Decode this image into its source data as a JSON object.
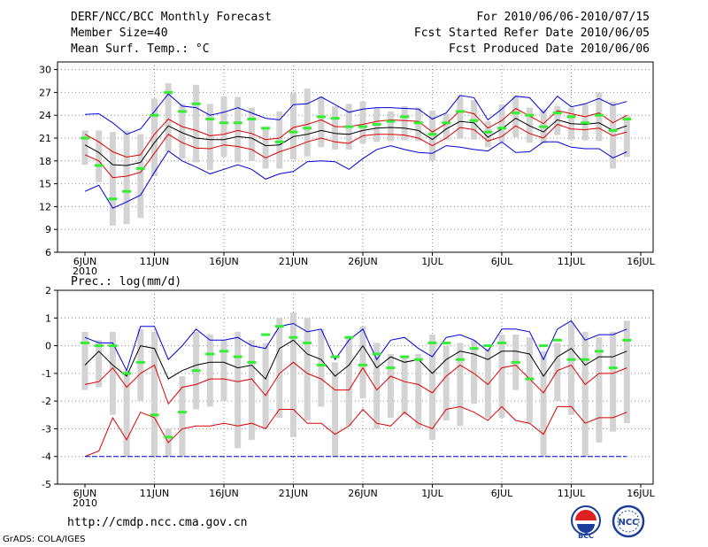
{
  "header": {
    "title": "DERF/NCC/BCC Monthly Forecast",
    "member_size": "Member Size=40",
    "variable": "Mean Surf. Temp.: °C",
    "period": "For 2010/06/06-2010/07/15",
    "fcst_started": "Fcst Started Refer Date 2010/06/05",
    "fcst_produced": "Fcst Produced Date 2010/06/06"
  },
  "footer": {
    "url": "http://cmdp.ncc.cma.gov.cn",
    "grads": "GrADS: COLA/IGES",
    "logo_left": "BCC",
    "logo_right": "NCC"
  },
  "colors": {
    "grid": "#888888",
    "envelope": "#0000dd",
    "spread": "#dd0000",
    "mean": "#000000",
    "box": "#d3d3d3",
    "member": "#33ee33"
  },
  "chart_data": [
    {
      "type": "line",
      "title": "Mean Surf. Temp.: °C",
      "ylim": [
        6,
        31
      ],
      "yticks": [
        6,
        9,
        12,
        15,
        18,
        21,
        24,
        27,
        30
      ],
      "xticks": [
        {
          "day": 1,
          "label": "6JUN"
        },
        {
          "day": 6,
          "label": "11JUN"
        },
        {
          "day": 11,
          "label": "16JUN"
        },
        {
          "day": 16,
          "label": "21JUN"
        },
        {
          "day": 21,
          "label": "26JUN"
        },
        {
          "day": 26,
          "label": "1JUL"
        },
        {
          "day": 31,
          "label": "6JUL"
        },
        {
          "day": 36,
          "label": "11JUL"
        },
        {
          "day": 41,
          "label": "16JUL"
        }
      ],
      "year_label": "2010",
      "days": [
        1,
        2,
        3,
        4,
        5,
        6,
        7,
        8,
        9,
        10,
        11,
        12,
        13,
        14,
        15,
        16,
        17,
        18,
        19,
        20,
        21,
        22,
        23,
        24,
        25,
        26,
        27,
        28,
        29,
        30,
        31,
        32,
        33,
        34,
        35,
        36,
        37,
        38,
        39,
        40
      ],
      "series": [
        {
          "name": "max",
          "values": [
            24.1,
            24.2,
            23.0,
            21.5,
            22.2,
            24.5,
            26.8,
            25.2,
            25.0,
            24.0,
            24.4,
            25.0,
            24.3,
            23.6,
            23.4,
            25.4,
            25.5,
            26.4,
            25.4,
            24.4,
            24.8,
            25.0,
            25.0,
            24.9,
            24.8,
            23.5,
            24.3,
            26.6,
            26.3,
            23.4,
            24.8,
            26.5,
            26.3,
            24.3,
            26.5,
            25.1,
            25.5,
            26.2,
            25.3,
            25.8
          ]
        },
        {
          "name": "upper",
          "values": [
            21.5,
            20.5,
            19.2,
            18.5,
            18.8,
            21.5,
            23.5,
            22.5,
            22.0,
            21.3,
            21.5,
            22.0,
            21.6,
            20.8,
            21.0,
            22.4,
            22.8,
            23.4,
            22.5,
            22.5,
            22.8,
            23.2,
            23.4,
            23.3,
            23.2,
            21.8,
            22.9,
            24.6,
            24.2,
            22.3,
            23.3,
            24.9,
            23.9,
            22.9,
            24.6,
            24.2,
            23.8,
            24.3,
            23.0,
            24.0
          ]
        },
        {
          "name": "mean",
          "values": [
            20.1,
            19.1,
            17.5,
            17.4,
            17.8,
            20.4,
            22.6,
            21.7,
            21.0,
            20.8,
            20.8,
            21.2,
            21.0,
            20.0,
            20.1,
            21.2,
            21.5,
            22.0,
            21.6,
            21.5,
            22.0,
            22.3,
            22.4,
            22.3,
            22.0,
            20.8,
            22.2,
            23.2,
            23.0,
            21.1,
            22.2,
            23.6,
            22.6,
            21.8,
            23.4,
            22.9,
            22.8,
            23.0,
            22.0,
            22.6
          ]
        },
        {
          "name": "lower",
          "values": [
            18.8,
            18.0,
            15.8,
            16.0,
            16.5,
            19.0,
            21.5,
            20.4,
            19.7,
            19.6,
            20.1,
            19.9,
            19.5,
            18.4,
            19.2,
            19.8,
            20.5,
            21.0,
            20.5,
            20.3,
            21.3,
            21.5,
            21.5,
            21.4,
            21.0,
            20.0,
            21.0,
            22.4,
            22.1,
            20.6,
            21.2,
            22.6,
            21.6,
            21.0,
            22.8,
            22.2,
            22.1,
            22.3,
            21.3,
            21.8
          ]
        },
        {
          "name": "min",
          "values": [
            14.0,
            14.8,
            11.8,
            12.6,
            13.5,
            16.5,
            19.3,
            18.0,
            17.2,
            16.3,
            16.9,
            17.5,
            16.9,
            15.6,
            16.3,
            16.6,
            17.9,
            18.0,
            17.9,
            16.9,
            18.3,
            19.5,
            20.0,
            19.5,
            19.1,
            19.0,
            20.0,
            19.8,
            19.5,
            19.3,
            20.5,
            19.1,
            19.2,
            20.5,
            20.5,
            19.8,
            19.6,
            19.6,
            18.4,
            19.2
          ]
        }
      ],
      "boxes_low": [
        17.5,
        15.2,
        9.5,
        9.7,
        10.5,
        16.0,
        19.2,
        18.3,
        17.8,
        16.8,
        18.5,
        17.8,
        18.0,
        17.0,
        17.0,
        18.2,
        18.6,
        19.8,
        19.5,
        19.5,
        20.3,
        20.5,
        20.6,
        20.7,
        20.6,
        18.0,
        20.8,
        20.9,
        20.8,
        19.8,
        20.5,
        21.1,
        20.4,
        20.3,
        21.4,
        20.8,
        20.7,
        20.6,
        17.0,
        18.5
      ],
      "boxes_high": [
        22.0,
        22.0,
        21.8,
        22.0,
        21.5,
        26.2,
        28.2,
        25.5,
        28.0,
        25.5,
        26.5,
        26.4,
        25.0,
        22.2,
        24.5,
        27.0,
        27.5,
        26.5,
        25.2,
        25.5,
        25.8,
        25.0,
        24.5,
        25.2,
        25.0,
        24.6,
        24.2,
        26.6,
        26.0,
        23.2,
        25.4,
        26.5,
        25.0,
        24.8,
        25.2,
        25.0,
        25.5,
        27.0,
        25.8,
        24.0
      ],
      "members": [
        21.0,
        17.4,
        13.0,
        14.0,
        17.0,
        24.0,
        27.0,
        24.5,
        25.5,
        23.5,
        23.0,
        23.0,
        23.5,
        22.3,
        20.5,
        21.8,
        22.3,
        23.8,
        23.6,
        22.5,
        22.5,
        22.8,
        23.2,
        23.8,
        23.0,
        21.5,
        23.0,
        24.5,
        23.3,
        21.8,
        22.3,
        24.3,
        24.0,
        22.5,
        24.3,
        23.8,
        23.0,
        24.0,
        22.0,
        23.5
      ]
    },
    {
      "type": "line",
      "title": "Prec.: log(mm/d)",
      "ylim": [
        -5,
        2
      ],
      "yticks": [
        -5,
        -4,
        -3,
        -2,
        -1,
        0,
        1,
        2
      ],
      "xticks": [
        {
          "day": 1,
          "label": "6JUN"
        },
        {
          "day": 6,
          "label": "11JUN"
        },
        {
          "day": 11,
          "label": "16JUN"
        },
        {
          "day": 16,
          "label": "21JUN"
        },
        {
          "day": 21,
          "label": "26JUN"
        },
        {
          "day": 26,
          "label": "1JUL"
        },
        {
          "day": 31,
          "label": "6JUL"
        },
        {
          "day": 36,
          "label": "11JUL"
        },
        {
          "day": 41,
          "label": "16JUL"
        }
      ],
      "year_label": "2010",
      "days": [
        1,
        2,
        3,
        4,
        5,
        6,
        7,
        8,
        9,
        10,
        11,
        12,
        13,
        14,
        15,
        16,
        17,
        18,
        19,
        20,
        21,
        22,
        23,
        24,
        25,
        26,
        27,
        28,
        29,
        30,
        31,
        32,
        33,
        34,
        35,
        36,
        37,
        38,
        39,
        40
      ],
      "series": [
        {
          "name": "max",
          "values": [
            0.3,
            0.1,
            0.1,
            -0.9,
            0.7,
            0.7,
            -0.5,
            0.0,
            0.6,
            0.2,
            0.2,
            0.3,
            0.0,
            -0.1,
            0.7,
            0.8,
            0.5,
            0.6,
            -0.5,
            0.2,
            0.6,
            -0.5,
            0.2,
            0.3,
            -0.1,
            -0.4,
            0.3,
            0.4,
            0.2,
            -0.2,
            0.6,
            0.6,
            0.5,
            -0.5,
            0.6,
            0.9,
            0.2,
            0.4,
            0.4,
            0.6
          ]
        },
        {
          "name": "mean",
          "values": [
            -0.7,
            -0.2,
            -0.7,
            -1.1,
            0.0,
            -0.1,
            -1.2,
            -0.9,
            -0.7,
            -0.6,
            -0.6,
            -0.8,
            -0.7,
            -1.2,
            -0.1,
            0.2,
            -0.3,
            -0.5,
            -1.1,
            -0.7,
            0.0,
            -0.8,
            -0.4,
            -0.6,
            -0.5,
            -1.0,
            -0.5,
            -0.2,
            -0.3,
            -0.5,
            -0.2,
            -0.2,
            -0.3,
            -1.1,
            -0.4,
            -0.1,
            -0.7,
            -0.4,
            -0.4,
            -0.2
          ]
        },
        {
          "name": "upper",
          "values": [
            -1.4,
            -1.3,
            -0.8,
            -1.5,
            -1.0,
            -0.7,
            -2.1,
            -1.5,
            -1.4,
            -1.2,
            -1.2,
            -1.3,
            -1.2,
            -1.8,
            -1.0,
            -0.6,
            -1.0,
            -1.2,
            -1.6,
            -1.6,
            -0.8,
            -1.6,
            -1.1,
            -1.3,
            -1.4,
            -1.7,
            -1.1,
            -0.7,
            -1.0,
            -1.4,
            -0.8,
            -0.7,
            -1.2,
            -1.7,
            -0.9,
            -0.7,
            -1.4,
            -1.0,
            -1.0,
            -0.8
          ]
        },
        {
          "name": "lower",
          "values": [
            -4.0,
            -3.8,
            -2.6,
            -3.4,
            -2.4,
            -2.6,
            -3.5,
            -3.0,
            -2.9,
            -2.9,
            -2.8,
            -2.9,
            -2.8,
            -3.0,
            -2.3,
            -2.3,
            -2.8,
            -2.8,
            -3.2,
            -2.9,
            -2.3,
            -2.8,
            -2.9,
            -2.4,
            -2.8,
            -3.0,
            -2.3,
            -2.2,
            -2.4,
            -2.7,
            -2.2,
            -2.7,
            -2.8,
            -3.2,
            -2.2,
            -2.2,
            -2.8,
            -2.6,
            -2.6,
            -2.4
          ]
        },
        {
          "name": "min",
          "values": [
            -4.0,
            -4.0,
            -4.0,
            -4.0,
            -4.0,
            -4.0,
            -4.0,
            -4.0,
            -4.0,
            -4.0,
            -4.0,
            -4.0,
            -4.0,
            -4.0,
            -4.0,
            -4.0,
            -4.0,
            -4.0,
            -4.0,
            -4.0,
            -4.0,
            -4.0,
            -4.0,
            -4.0,
            -4.0,
            -4.0,
            -4.0,
            -4.0,
            -4.0,
            -4.0,
            -4.0,
            -4.0,
            -4.0,
            -4.0,
            -4.0,
            -4.0,
            -4.0,
            -4.0,
            -4.0,
            -4.0
          ]
        }
      ],
      "boxes_low": [
        -1.6,
        -1.5,
        -2.5,
        -4.0,
        -2.0,
        -4.0,
        -4.0,
        -4.0,
        -2.3,
        -2.2,
        -2.0,
        -3.7,
        -3.4,
        -3.0,
        -2.6,
        -3.3,
        -2.7,
        -2.2,
        -4.0,
        -2.9,
        -1.9,
        -3.0,
        -2.6,
        -2.5,
        -3.0,
        -3.4,
        -2.7,
        -2.9,
        -2.1,
        -2.6,
        -2.6,
        -1.6,
        -2.8,
        -4.0,
        -2.0,
        -2.5,
        -4.0,
        -3.5,
        -3.1,
        -2.8
      ],
      "boxes_high": [
        0.5,
        0.2,
        0.5,
        -0.9,
        0.6,
        0.5,
        -3.0,
        -1.1,
        0.5,
        0.4,
        0.2,
        0.5,
        0.2,
        0.1,
        1.0,
        1.2,
        1.0,
        0.6,
        -0.6,
        0.3,
        0.7,
        0.1,
        -0.3,
        -0.4,
        -0.3,
        0.4,
        0.0,
        0.1,
        0.2,
        -0.1,
        0.4,
        0.4,
        0.3,
        -0.2,
        0.1,
        0.8,
        0.5,
        0.3,
        0.5,
        0.9
      ],
      "members": [
        0.1,
        0.0,
        0.0,
        -1.0,
        -0.6,
        -2.5,
        -3.3,
        -2.4,
        -0.9,
        -0.3,
        -0.2,
        -0.4,
        -0.6,
        0.4,
        0.7,
        0.3,
        0.1,
        -0.7,
        -0.4,
        0.3,
        -0.7,
        -0.3,
        -0.8,
        -0.4,
        -0.5,
        0.1,
        0.1,
        -0.5,
        -0.1,
        0.0,
        0.1,
        -0.6,
        -1.2,
        0.0,
        0.2,
        -0.5,
        -0.5,
        -0.2,
        -0.8,
        0.2
      ]
    }
  ]
}
